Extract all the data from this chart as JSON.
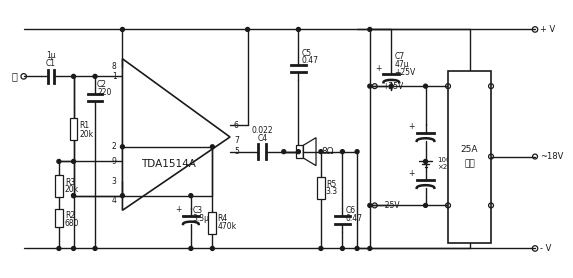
{
  "bg": "#ffffff",
  "lc": "#1a1a1a",
  "lw": 1.0,
  "components": {
    "C1": "C1\n1μ",
    "C2": "C2\n220",
    "C3": "C3\n3.3μ",
    "C4": "C4\n0.022",
    "C5": "C5\n0.47",
    "C6": "C6\n0.47",
    "C7": "C7\n47μ\n+25V",
    "R1": "R1\n20k",
    "R2": "R2\n680",
    "R3": "R3\n20k",
    "R4": "R4\n470k",
    "R5": "R5\n3.3",
    "ic": "TDA1514A",
    "spk": "8Ω",
    "cap10k": "10000μ\n×2",
    "pv25": "+25V",
    "mv25": "-25V",
    "bridge_line1": "25A",
    "bridge_line2": "全桥",
    "ac18": "~18V",
    "Vp": "+ V",
    "Vm": "- V",
    "input_char": "入"
  }
}
